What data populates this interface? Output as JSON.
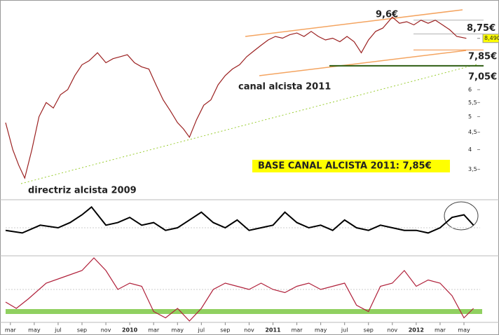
{
  "chart_data": [
    {
      "type": "line",
      "log_scale": true,
      "color": "#9b2020",
      "x": [
        2.6,
        3.2,
        3.7,
        4.2,
        4.8,
        5.4,
        6,
        6.6,
        7.2,
        7.8,
        8.4,
        9,
        9.6,
        10.3,
        11,
        11.6,
        12.2,
        12.8,
        13.4,
        14,
        14.6,
        15.2,
        15.8,
        16.4,
        17,
        17.5,
        18,
        18.6,
        19.2,
        19.8,
        20.4,
        21,
        21.6,
        22.2,
        22.8,
        23.4,
        24,
        24.6,
        25.2,
        25.8,
        26.4,
        27,
        27.6,
        28.2,
        28.8,
        29.4,
        30,
        30.6,
        31.2,
        31.8,
        32.4,
        33,
        33.6,
        34.2,
        35,
        35.6,
        36.2,
        36.8,
        37.4,
        38,
        38.6,
        39.2,
        39.8,
        40.4,
        41.2
      ],
      "values": [
        4.8,
        4.0,
        3.6,
        3.3,
        4.0,
        5.0,
        5.5,
        5.3,
        5.8,
        6.0,
        6.6,
        7.1,
        7.3,
        7.7,
        7.2,
        7.4,
        7.5,
        7.6,
        7.2,
        7.0,
        6.9,
        6.2,
        5.6,
        5.2,
        4.8,
        4.6,
        4.35,
        4.9,
        5.4,
        5.6,
        6.2,
        6.6,
        6.9,
        7.1,
        7.5,
        7.8,
        8.1,
        8.4,
        8.6,
        8.5,
        8.7,
        8.8,
        8.6,
        8.9,
        8.6,
        8.4,
        8.5,
        8.3,
        8.6,
        8.3,
        7.7,
        8.4,
        8.9,
        9.1,
        9.8,
        9.4,
        9.5,
        9.3,
        9.6,
        9.4,
        9.6,
        9.3,
        9.0,
        8.6,
        8.49
      ],
      "xlim": [
        2.6,
        42.35
      ],
      "ylim": [
        2.85,
        10.9
      ],
      "xticks": [
        {
          "value": 3,
          "label": "mar"
        },
        {
          "value": 5,
          "label": "may"
        },
        {
          "value": 7,
          "label": "jul"
        },
        {
          "value": 9,
          "label": "sep"
        },
        {
          "value": 11,
          "label": "nov"
        },
        {
          "value": 13,
          "label": "2010"
        },
        {
          "value": 15,
          "label": "mar"
        },
        {
          "value": 17,
          "label": "may"
        },
        {
          "value": 19,
          "label": "jul"
        },
        {
          "value": 21,
          "label": "sep"
        },
        {
          "value": 23,
          "label": "nov"
        },
        {
          "value": 25,
          "label": "2011"
        },
        {
          "value": 27,
          "label": "mar"
        },
        {
          "value": 29,
          "label": "may"
        },
        {
          "value": 31,
          "label": "jul"
        },
        {
          "value": 33,
          "label": "sep"
        },
        {
          "value": 35,
          "label": "nov"
        },
        {
          "value": 37,
          "label": "2012"
        },
        {
          "value": 39,
          "label": "mar"
        },
        {
          "value": 41,
          "label": "may"
        }
      ],
      "yticks": [
        {
          "value": 3.5,
          "label": "3,5"
        },
        4,
        {
          "value": 4.5,
          "label": "4,5"
        },
        5,
        {
          "value": 5.5,
          "label": "5,5"
        },
        6,
        {
          "value": 8.49,
          "label": "8,490"
        }
      ],
      "levels": [
        {
          "value": 9.6,
          "label": "9,6€",
          "color": "#b0b0b0"
        },
        {
          "value": 8.75,
          "label": "8,75€",
          "color": "#b0b0b0"
        },
        {
          "value": 7.85,
          "label": "7,85€",
          "color": "#f08a3c"
        },
        {
          "value": 7.05,
          "label": "7,05€",
          "color": "#2e5e12"
        }
      ],
      "annotations": [
        {
          "text": "canal alcista 2011",
          "color": "#f08a3c"
        },
        {
          "text": "directriz alcista 2009",
          "color": "#3a6e12"
        },
        {
          "text": "BASE CANAL ALCISTA 2011: 7,85€",
          "color": "#000"
        }
      ]
    },
    {
      "type": "line",
      "color": "#000",
      "x": [
        2.6,
        4,
        5.5,
        7,
        8,
        9,
        9.8,
        11,
        12,
        13,
        14,
        15,
        16,
        17,
        18,
        19,
        20,
        21,
        22,
        23,
        24,
        25,
        26,
        27,
        28,
        29,
        30,
        31,
        32,
        33,
        34,
        35,
        36,
        37,
        38,
        39,
        40,
        41,
        41.8
      ],
      "values": [
        45,
        40,
        55,
        50,
        60,
        75,
        90,
        55,
        60,
        70,
        55,
        60,
        45,
        50,
        65,
        80,
        60,
        50,
        65,
        45,
        50,
        55,
        80,
        60,
        50,
        55,
        45,
        65,
        50,
        45,
        55,
        50,
        45,
        45,
        40,
        50,
        70,
        75,
        55
      ],
      "ylim": [
        0,
        100
      ]
    },
    {
      "type": "line",
      "color": "#b0203a",
      "x": [
        2.6,
        3.5,
        4.5,
        6,
        7.5,
        9,
        10,
        11,
        12,
        13,
        14,
        15,
        16,
        17,
        18,
        19,
        20,
        21,
        22,
        23,
        24,
        25,
        26,
        27,
        28,
        29,
        30,
        31,
        32,
        33,
        34,
        35,
        36,
        37,
        38,
        39,
        40,
        41,
        41.8
      ],
      "values": [
        -40,
        -60,
        -30,
        20,
        40,
        60,
        100,
        60,
        0,
        20,
        10,
        -70,
        -90,
        -60,
        -100,
        -60,
        0,
        20,
        10,
        0,
        20,
        0,
        -10,
        10,
        20,
        0,
        10,
        20,
        -50,
        -70,
        10,
        20,
        60,
        10,
        30,
        20,
        -20,
        -90,
        -60
      ],
      "ylim": [
        -100,
        100
      ]
    }
  ]
}
